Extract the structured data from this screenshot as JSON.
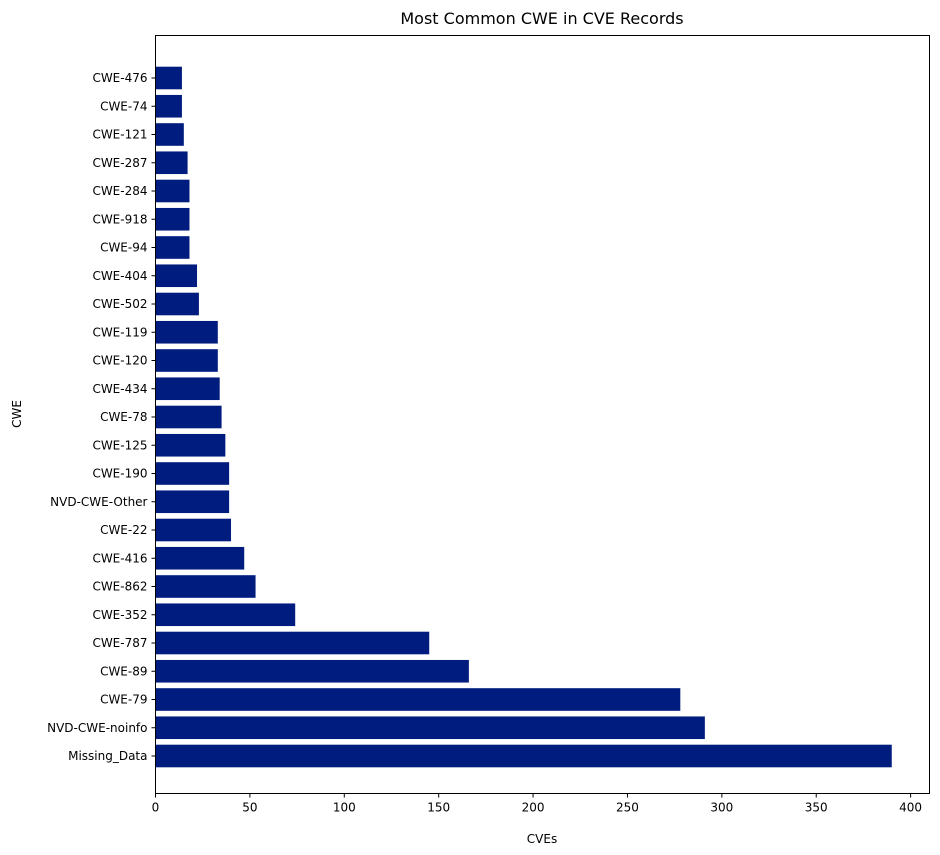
{
  "chart_data": {
    "type": "bar",
    "orientation": "horizontal",
    "title": "Most Common CWE in CVE Records",
    "xlabel": "CVEs",
    "ylabel": "CWE",
    "xlim": [
      0,
      410
    ],
    "xticks": [
      0,
      50,
      100,
      150,
      200,
      250,
      300,
      350,
      400
    ],
    "grid": false,
    "bar_color": "#001c7f",
    "categories": [
      "Missing_Data",
      "NVD-CWE-noinfo",
      "CWE-79",
      "CWE-89",
      "CWE-787",
      "CWE-352",
      "CWE-862",
      "CWE-416",
      "CWE-22",
      "NVD-CWE-Other",
      "CWE-190",
      "CWE-125",
      "CWE-78",
      "CWE-434",
      "CWE-120",
      "CWE-119",
      "CWE-502",
      "CWE-404",
      "CWE-94",
      "CWE-918",
      "CWE-284",
      "CWE-287",
      "CWE-121",
      "CWE-74",
      "CWE-476"
    ],
    "values": [
      390,
      291,
      278,
      166,
      145,
      74,
      53,
      47,
      40,
      39,
      39,
      37,
      35,
      34,
      33,
      33,
      23,
      22,
      18,
      18,
      18,
      17,
      15,
      14,
      14
    ]
  }
}
